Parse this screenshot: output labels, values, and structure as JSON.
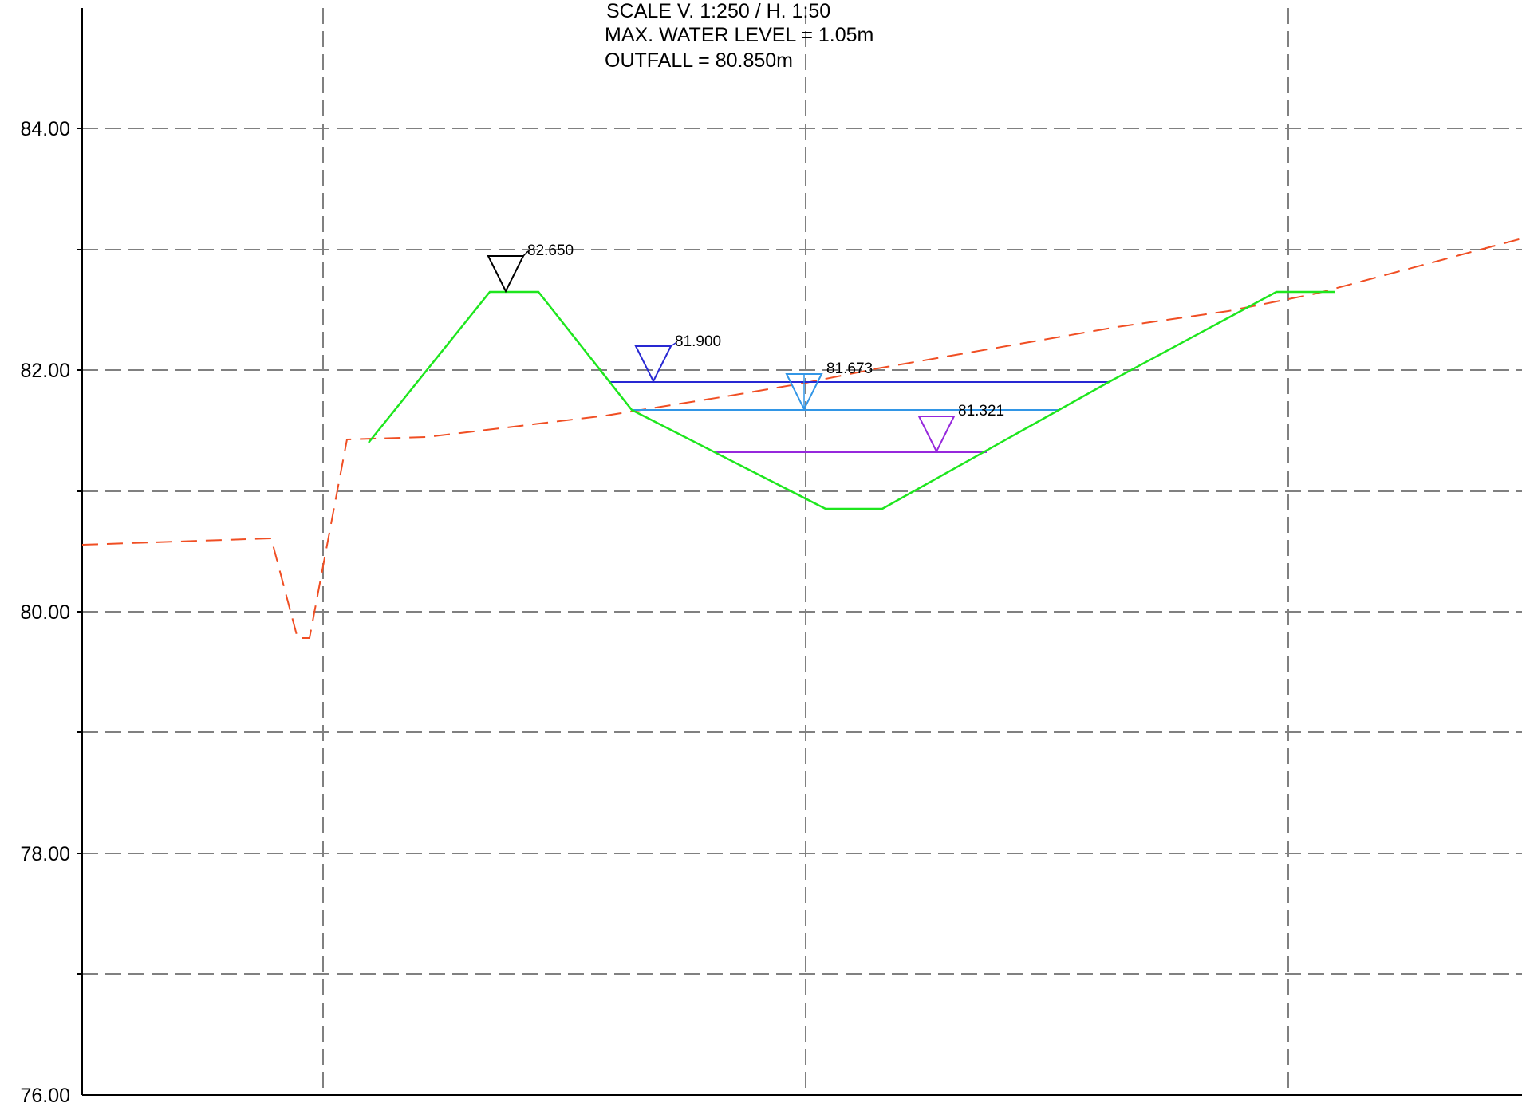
{
  "notes": {
    "scale": "SCALE V. 1:250 / H. 1:50",
    "max_water_level": "MAX. WATER LEVEL = 1.05m",
    "outfall": "OUTFALL = 80.850m"
  },
  "axis": {
    "y_ticks": [
      "84.00",
      "82.00",
      "80.00",
      "78.00",
      "76.00"
    ],
    "y_range": [
      76.0,
      85.0
    ]
  },
  "colors": {
    "grid": "#808080",
    "ground": "#f04e23",
    "channel": "#1ee61e",
    "level_dark_blue": "#2828d2",
    "level_light_blue": "#3296e6",
    "level_purple": "#9628dc",
    "bank_marker": "#000000"
  },
  "levels": [
    {
      "name": "bank-top",
      "label": "82.650",
      "color": "#000000"
    },
    {
      "name": "water-level-dark-blue",
      "label": "81.900",
      "color": "#2828d2"
    },
    {
      "name": "water-level-light-blue",
      "label": "81.673",
      "color": "#3296e6"
    },
    {
      "name": "water-level-purple",
      "label": "81.321",
      "color": "#9628dc"
    }
  ]
}
